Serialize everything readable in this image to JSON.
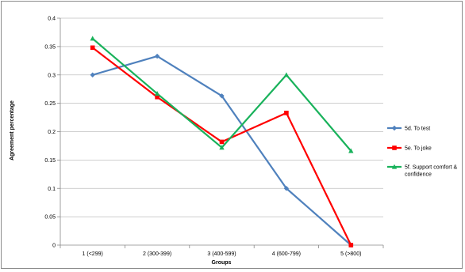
{
  "chart_data": {
    "type": "line",
    "xlabel": "Groups",
    "ylabel": "Agreement percentage",
    "categories": [
      "1 (<299)",
      "2 (300-399)",
      "3 (400-599)",
      "4 (600-799)",
      "5 (>800)"
    ],
    "ylim": [
      0,
      0.4
    ],
    "yticks": [
      0,
      0.05,
      0.1,
      0.15,
      0.2,
      0.25,
      0.3,
      0.35,
      0.4
    ],
    "ytick_labels": [
      "0",
      "0.05",
      "0.1",
      "0.15",
      "0.2",
      "0.25",
      "0.3",
      "0.35",
      "0.4"
    ],
    "grid": "horizontal",
    "legend_position": "right",
    "series": [
      {
        "name": "5d. To test",
        "color": "#4f81bd",
        "marker": "diamond",
        "values": [
          0.3,
          0.333,
          0.263,
          0.1,
          0.0
        ]
      },
      {
        "name": "5e. To joke",
        "color": "#ff0000",
        "marker": "square",
        "values": [
          0.348,
          0.261,
          0.182,
          0.233,
          0.0
        ]
      },
      {
        "name": "5f. Support comfort & confidence",
        "color": "#19b25b",
        "marker": "triangle",
        "values": [
          0.364,
          0.267,
          0.172,
          0.3,
          0.166
        ]
      }
    ]
  }
}
